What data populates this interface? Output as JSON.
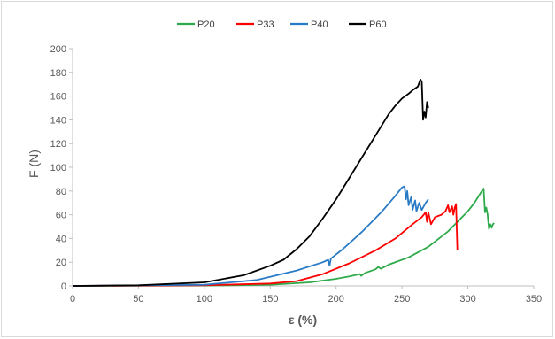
{
  "chart_data": {
    "type": "line",
    "xlabel": "ε (%)",
    "ylabel": "F (N)",
    "xlim": [
      0,
      350
    ],
    "ylim": [
      0,
      200
    ],
    "xticks": [
      0,
      50,
      100,
      150,
      200,
      250,
      300,
      350
    ],
    "yticks": [
      0,
      20,
      40,
      60,
      80,
      100,
      120,
      140,
      160,
      180,
      200
    ],
    "grid": false,
    "legend_position": "top",
    "series": [
      {
        "name": "P20",
        "color": "#2eaa4a",
        "points": [
          [
            0,
            0
          ],
          [
            100,
            0.3
          ],
          [
            150,
            1
          ],
          [
            180,
            3
          ],
          [
            200,
            6
          ],
          [
            210,
            8
          ],
          [
            218,
            10
          ],
          [
            219,
            8.5
          ],
          [
            222,
            11
          ],
          [
            230,
            14
          ],
          [
            232,
            16
          ],
          [
            234,
            14.5
          ],
          [
            240,
            18
          ],
          [
            255,
            24
          ],
          [
            270,
            33
          ],
          [
            285,
            46
          ],
          [
            300,
            63
          ],
          [
            305,
            70
          ],
          [
            310,
            79
          ],
          [
            312,
            82
          ],
          [
            313,
            62
          ],
          [
            314,
            66
          ],
          [
            315,
            60
          ],
          [
            316,
            48
          ],
          [
            317,
            52
          ],
          [
            318,
            49
          ],
          [
            319,
            52
          ],
          [
            320,
            53
          ]
        ]
      },
      {
        "name": "P33",
        "color": "#ff0000",
        "points": [
          [
            0,
            0
          ],
          [
            100,
            0.5
          ],
          [
            150,
            2
          ],
          [
            170,
            4
          ],
          [
            190,
            10
          ],
          [
            210,
            19
          ],
          [
            230,
            30
          ],
          [
            245,
            40
          ],
          [
            258,
            52
          ],
          [
            265,
            58
          ],
          [
            268,
            62
          ],
          [
            269,
            54
          ],
          [
            270,
            62
          ],
          [
            272,
            52
          ],
          [
            275,
            58
          ],
          [
            280,
            60
          ],
          [
            283,
            63
          ],
          [
            285,
            68
          ],
          [
            286,
            62
          ],
          [
            288,
            67
          ],
          [
            289,
            60
          ],
          [
            290,
            66
          ],
          [
            291,
            69
          ],
          [
            292,
            30
          ]
        ]
      },
      {
        "name": "P40",
        "color": "#2a7bc7",
        "points": [
          [
            0,
            0
          ],
          [
            100,
            1
          ],
          [
            140,
            5
          ],
          [
            170,
            13
          ],
          [
            190,
            20
          ],
          [
            194,
            22
          ],
          [
            195,
            17
          ],
          [
            196,
            23
          ],
          [
            205,
            31
          ],
          [
            220,
            46
          ],
          [
            235,
            63
          ],
          [
            245,
            76
          ],
          [
            250,
            83
          ],
          [
            252,
            84
          ],
          [
            253,
            73
          ],
          [
            254,
            80
          ],
          [
            255,
            68
          ],
          [
            257,
            75
          ],
          [
            258,
            64
          ],
          [
            260,
            72
          ],
          [
            261,
            63
          ],
          [
            263,
            70
          ],
          [
            265,
            64
          ],
          [
            268,
            70
          ],
          [
            270,
            73
          ]
        ]
      },
      {
        "name": "P60",
        "color": "#000000",
        "points": [
          [
            0,
            0
          ],
          [
            50,
            0.5
          ],
          [
            100,
            3
          ],
          [
            130,
            9
          ],
          [
            150,
            17
          ],
          [
            160,
            22
          ],
          [
            170,
            31
          ],
          [
            180,
            42
          ],
          [
            190,
            57
          ],
          [
            200,
            73
          ],
          [
            210,
            91
          ],
          [
            220,
            109
          ],
          [
            230,
            127
          ],
          [
            240,
            145
          ],
          [
            245,
            152
          ],
          [
            250,
            158
          ],
          [
            255,
            162
          ],
          [
            258,
            165
          ],
          [
            262,
            168
          ],
          [
            264,
            174
          ],
          [
            265,
            172
          ],
          [
            266,
            140
          ],
          [
            267,
            147
          ],
          [
            268,
            142
          ],
          [
            269,
            155
          ],
          [
            270,
            150
          ]
        ]
      }
    ]
  }
}
